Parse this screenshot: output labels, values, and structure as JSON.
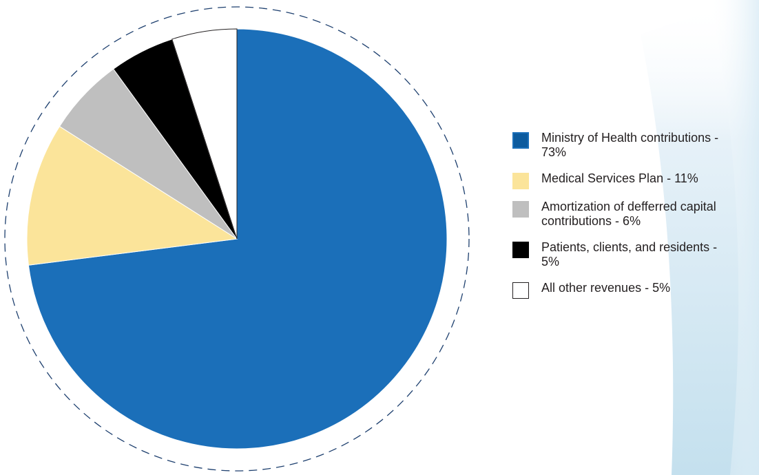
{
  "colors": {
    "ministry": "#1b6fb9",
    "ministry_swatch": "#0d5b9e",
    "msp": "#fbe49a",
    "amortization": "#bfbfbf",
    "patients": "#000000",
    "other": "#ffffff",
    "slice_border": "#231f20",
    "ring": "#1d3f6e"
  },
  "legend": {
    "items": [
      {
        "label": "Ministry of Health contributions - 73%"
      },
      {
        "label": "Medical Services Plan - 11%"
      },
      {
        "label": "Amortization of defferred capital contributions - 6%"
      },
      {
        "label": "Patients, clients, and residents - 5%"
      },
      {
        "label": "All other revenues - 5%"
      }
    ]
  },
  "chart_data": {
    "type": "pie",
    "title": "",
    "legend_position": "right",
    "slices": [
      {
        "label": "Ministry of Health contributions",
        "value": 73
      },
      {
        "label": "Medical Services Plan",
        "value": 11
      },
      {
        "label": "Amortization of defferred capital contributions",
        "value": 6
      },
      {
        "label": "Patients, clients, and residents",
        "value": 5
      },
      {
        "label": "All other revenues",
        "value": 5
      }
    ]
  }
}
